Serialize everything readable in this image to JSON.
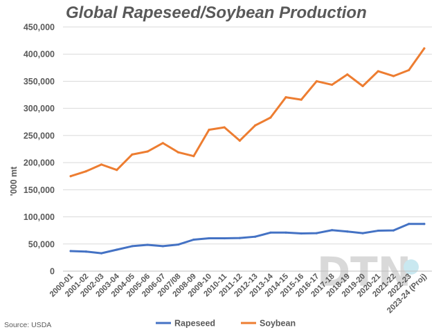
{
  "chart_data": {
    "type": "line",
    "title": "Global Rapeseed/Soybean Production",
    "ylabel": "'000 mt",
    "xlabel": "",
    "ylim": [
      0,
      450000
    ],
    "yticks": [
      0,
      50000,
      100000,
      150000,
      200000,
      250000,
      300000,
      350000,
      400000,
      450000
    ],
    "ytick_labels": [
      "0",
      "50,000",
      "100,000",
      "150,000",
      "200,000",
      "250,000",
      "300,000",
      "350,000",
      "400,000",
      "450,000"
    ],
    "categories": [
      "2000-01",
      "2001-02",
      "2002-03",
      "2003-04",
      "2004-05",
      "2005-06",
      "2006-07",
      "2007/08",
      "2008-09",
      "2009-10",
      "2010-11",
      "2011-12",
      "2012-13",
      "2013-14",
      "2014-15",
      "2015-16",
      "2016-17",
      "2017-18",
      "2018-19",
      "2019-20",
      "2020-21",
      "2021-22",
      "2022-23",
      "2023-24 (Proj)"
    ],
    "series": [
      {
        "name": "Rapeseed",
        "color": "#4472c4",
        "values": [
          37000,
          36000,
          33000,
          39500,
          46000,
          48500,
          46000,
          49000,
          58000,
          60500,
          60500,
          61000,
          63500,
          71000,
          71000,
          69500,
          70000,
          75500,
          73000,
          70000,
          74500,
          75000,
          87000,
          87000
        ]
      },
      {
        "name": "Soybean",
        "color": "#ed7d31",
        "values": [
          175000,
          184000,
          196500,
          186500,
          215000,
          220500,
          236000,
          219000,
          212000,
          260500,
          265000,
          240500,
          268500,
          283000,
          320500,
          316000,
          350000,
          343500,
          362500,
          341000,
          368500,
          359500,
          370500,
          410500
        ]
      }
    ],
    "grid": true,
    "legend": "bottom"
  },
  "source": "Source: USDA",
  "logo_text": "DTN"
}
